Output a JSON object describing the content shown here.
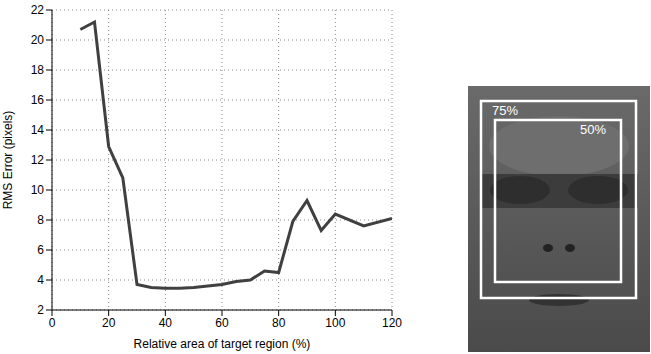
{
  "chart_data": {
    "type": "line",
    "x_label": "Relative area of target region (%)",
    "y_label": "RMS Error (pixels)",
    "x": [
      10,
      15,
      20,
      25,
      30,
      35,
      40,
      45,
      50,
      55,
      60,
      65,
      70,
      75,
      80,
      85,
      90,
      95,
      100,
      110,
      120
    ],
    "values": [
      20.7,
      21.2,
      12.9,
      10.8,
      3.7,
      3.5,
      3.45,
      3.45,
      3.5,
      3.6,
      3.7,
      3.9,
      4.0,
      4.6,
      4.5,
      7.9,
      9.3,
      7.3,
      8.4,
      7.6,
      8.1
    ],
    "color": "#404040",
    "xlim": [
      0,
      120
    ],
    "xticks": [
      0,
      20,
      40,
      60,
      80,
      100,
      120
    ],
    "ylim": [
      2,
      22
    ],
    "yticks": [
      2,
      4,
      6,
      8,
      10,
      12,
      14,
      16,
      18,
      20,
      22
    ],
    "grid": true
  },
  "image": {
    "boxes": [
      {
        "label": "75%"
      },
      {
        "label": "50%"
      }
    ]
  }
}
